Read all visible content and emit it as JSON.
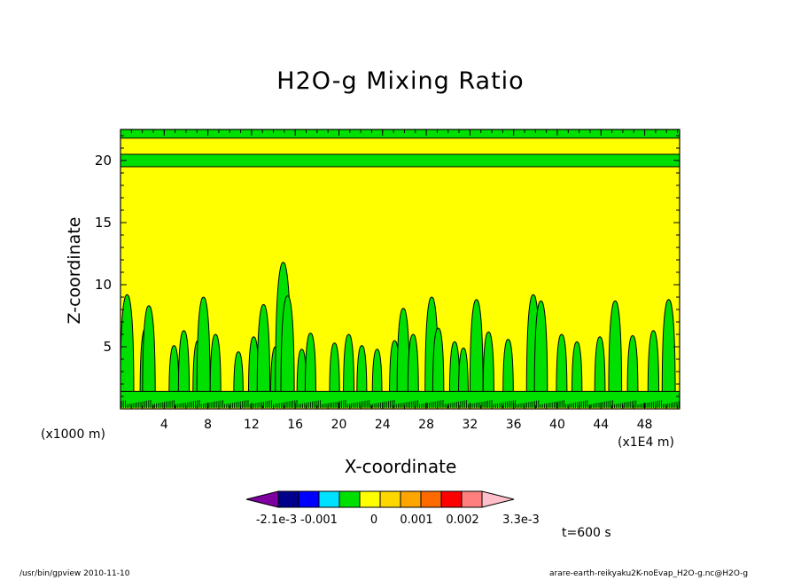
{
  "page": {
    "footer_left": "/usr/bin/gpview   2010-11-10",
    "footer_right": "arare-earth-reikyaku2K-noEvap_H2O-g.nc@H2O-g",
    "time_label": "t=600 s",
    "x_unit_label": "(x1000 m)",
    "x_scale_label": "(x1E4 m)"
  },
  "colorbar": {
    "labels": [
      "-2.1e-3",
      "-0.001",
      "0",
      "0.001",
      "0.002",
      "3.3e-3"
    ],
    "colors": [
      "#7f00a0",
      "#00008c",
      "#0000ff",
      "#00e0ff",
      "#00e000",
      "#ffff00",
      "#ffd700",
      "#ffa500",
      "#ff6a00",
      "#ff0000",
      "#ff7f7f",
      "#ffc0cb"
    ]
  },
  "chart_data": {
    "type": "heatmap",
    "title": "H2O-g Mixing Ratio",
    "xlabel": "X-coordinate",
    "ylabel": "Z-coordinate",
    "x_ticks": [
      4,
      8,
      12,
      16,
      20,
      24,
      28,
      32,
      36,
      40,
      44,
      48
    ],
    "y_ticks": [
      5,
      10,
      15,
      20
    ],
    "xlim": [
      0,
      51.2
    ],
    "ylim": [
      0,
      22.5
    ],
    "background_fill_color": "#ffff00",
    "contour_fill_color": "#00e000",
    "green_bands_z": [
      [
        19.5,
        20.5
      ],
      [
        21.8,
        22.5
      ]
    ],
    "near_surface_band_z": [
      0.1,
      1.4
    ],
    "plumes": [
      {
        "x": 0.6,
        "top": 9.2
      },
      {
        "x": 2.3,
        "top": 6.5
      },
      {
        "x": 2.6,
        "top": 8.3
      },
      {
        "x": 4.9,
        "top": 5.1
      },
      {
        "x": 5.8,
        "top": 6.3
      },
      {
        "x": 7.1,
        "top": 5.5
      },
      {
        "x": 7.6,
        "top": 9.0
      },
      {
        "x": 8.7,
        "top": 6.0
      },
      {
        "x": 10.8,
        "top": 4.6
      },
      {
        "x": 12.2,
        "top": 5.8
      },
      {
        "x": 13.1,
        "top": 8.4
      },
      {
        "x": 14.2,
        "top": 5.0
      },
      {
        "x": 14.9,
        "top": 11.8
      },
      {
        "x": 15.3,
        "top": 9.1
      },
      {
        "x": 16.6,
        "top": 4.8
      },
      {
        "x": 17.4,
        "top": 6.1
      },
      {
        "x": 19.6,
        "top": 5.3
      },
      {
        "x": 20.9,
        "top": 6.0
      },
      {
        "x": 22.1,
        "top": 5.1
      },
      {
        "x": 23.5,
        "top": 4.8
      },
      {
        "x": 25.1,
        "top": 5.5
      },
      {
        "x": 25.9,
        "top": 8.1
      },
      {
        "x": 26.8,
        "top": 6.0
      },
      {
        "x": 28.5,
        "top": 9.0
      },
      {
        "x": 29.1,
        "top": 6.5
      },
      {
        "x": 30.6,
        "top": 5.4
      },
      {
        "x": 31.4,
        "top": 4.9
      },
      {
        "x": 32.6,
        "top": 8.8
      },
      {
        "x": 33.7,
        "top": 6.2
      },
      {
        "x": 35.5,
        "top": 5.6
      },
      {
        "x": 37.8,
        "top": 9.2
      },
      {
        "x": 38.5,
        "top": 8.7
      },
      {
        "x": 40.4,
        "top": 6.0
      },
      {
        "x": 41.8,
        "top": 5.4
      },
      {
        "x": 43.9,
        "top": 5.8
      },
      {
        "x": 45.3,
        "top": 8.7
      },
      {
        "x": 46.9,
        "top": 5.9
      },
      {
        "x": 48.8,
        "top": 6.3
      },
      {
        "x": 50.2,
        "top": 8.8
      }
    ]
  }
}
